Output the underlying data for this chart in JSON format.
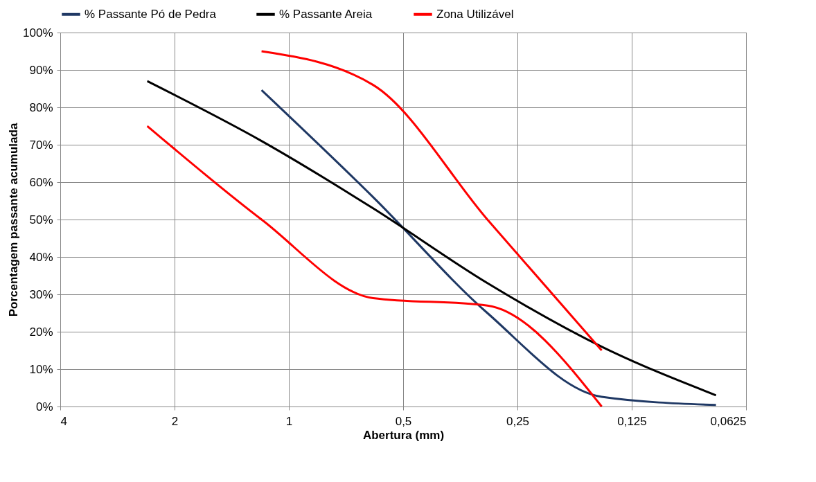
{
  "chart_data": {
    "type": "line",
    "xlabel": "Abertura (mm)",
    "ylabel": "Porcentagem passante acumulada",
    "log": "x",
    "xlim": [
      4,
      0.0625
    ],
    "xticks": [
      4,
      2,
      1,
      {
        "value": 0.5,
        "label": "0,5"
      },
      {
        "value": 0.25,
        "label": "0,25"
      },
      {
        "value": 0.125,
        "label": "0,125"
      },
      {
        "value": 0.0625,
        "label": "0,0625"
      }
    ],
    "ylim": [
      0,
      100
    ],
    "yticks": [
      {
        "value": 0,
        "label": "0%"
      },
      {
        "value": 10,
        "label": "10%"
      },
      {
        "value": 20,
        "label": "20%"
      },
      {
        "value": 30,
        "label": "30%"
      },
      {
        "value": 40,
        "label": "40%"
      },
      {
        "value": 50,
        "label": "50%"
      },
      {
        "value": 60,
        "label": "60%"
      },
      {
        "value": 70,
        "label": "70%"
      },
      {
        "value": 80,
        "label": "80%"
      },
      {
        "value": 90,
        "label": "90%"
      },
      {
        "value": 100,
        "label": "100%"
      }
    ],
    "grid": true,
    "legend": "top",
    "marker": "none",
    "series": [
      {
        "name": "% Passante Pó de Pedra",
        "color": "#1f3864",
        "x": [
          1.18,
          0.6,
          0.3,
          0.15,
          0.075
        ],
        "values": [
          84.6,
          56,
          25,
          2.6,
          0.4
        ]
      },
      {
        "name": "% Passante Areia",
        "color": "#000000",
        "x": [
          2.36,
          1.18,
          0.6,
          0.3,
          0.15,
          0.075
        ],
        "values": [
          87,
          71,
          53,
          33,
          16,
          3
        ]
      },
      {
        "name": "Zona Utilizável",
        "color": "#ff0000",
        "x": [
          1.18,
          0.6,
          0.3,
          0.15
        ],
        "values": [
          95,
          86,
          50,
          15
        ]
      },
      {
        "color": "#ff0000",
        "x": [
          2.36,
          1.18,
          0.6,
          0.3,
          0.15
        ],
        "values": [
          75,
          50,
          29,
          27,
          0
        ]
      }
    ]
  }
}
